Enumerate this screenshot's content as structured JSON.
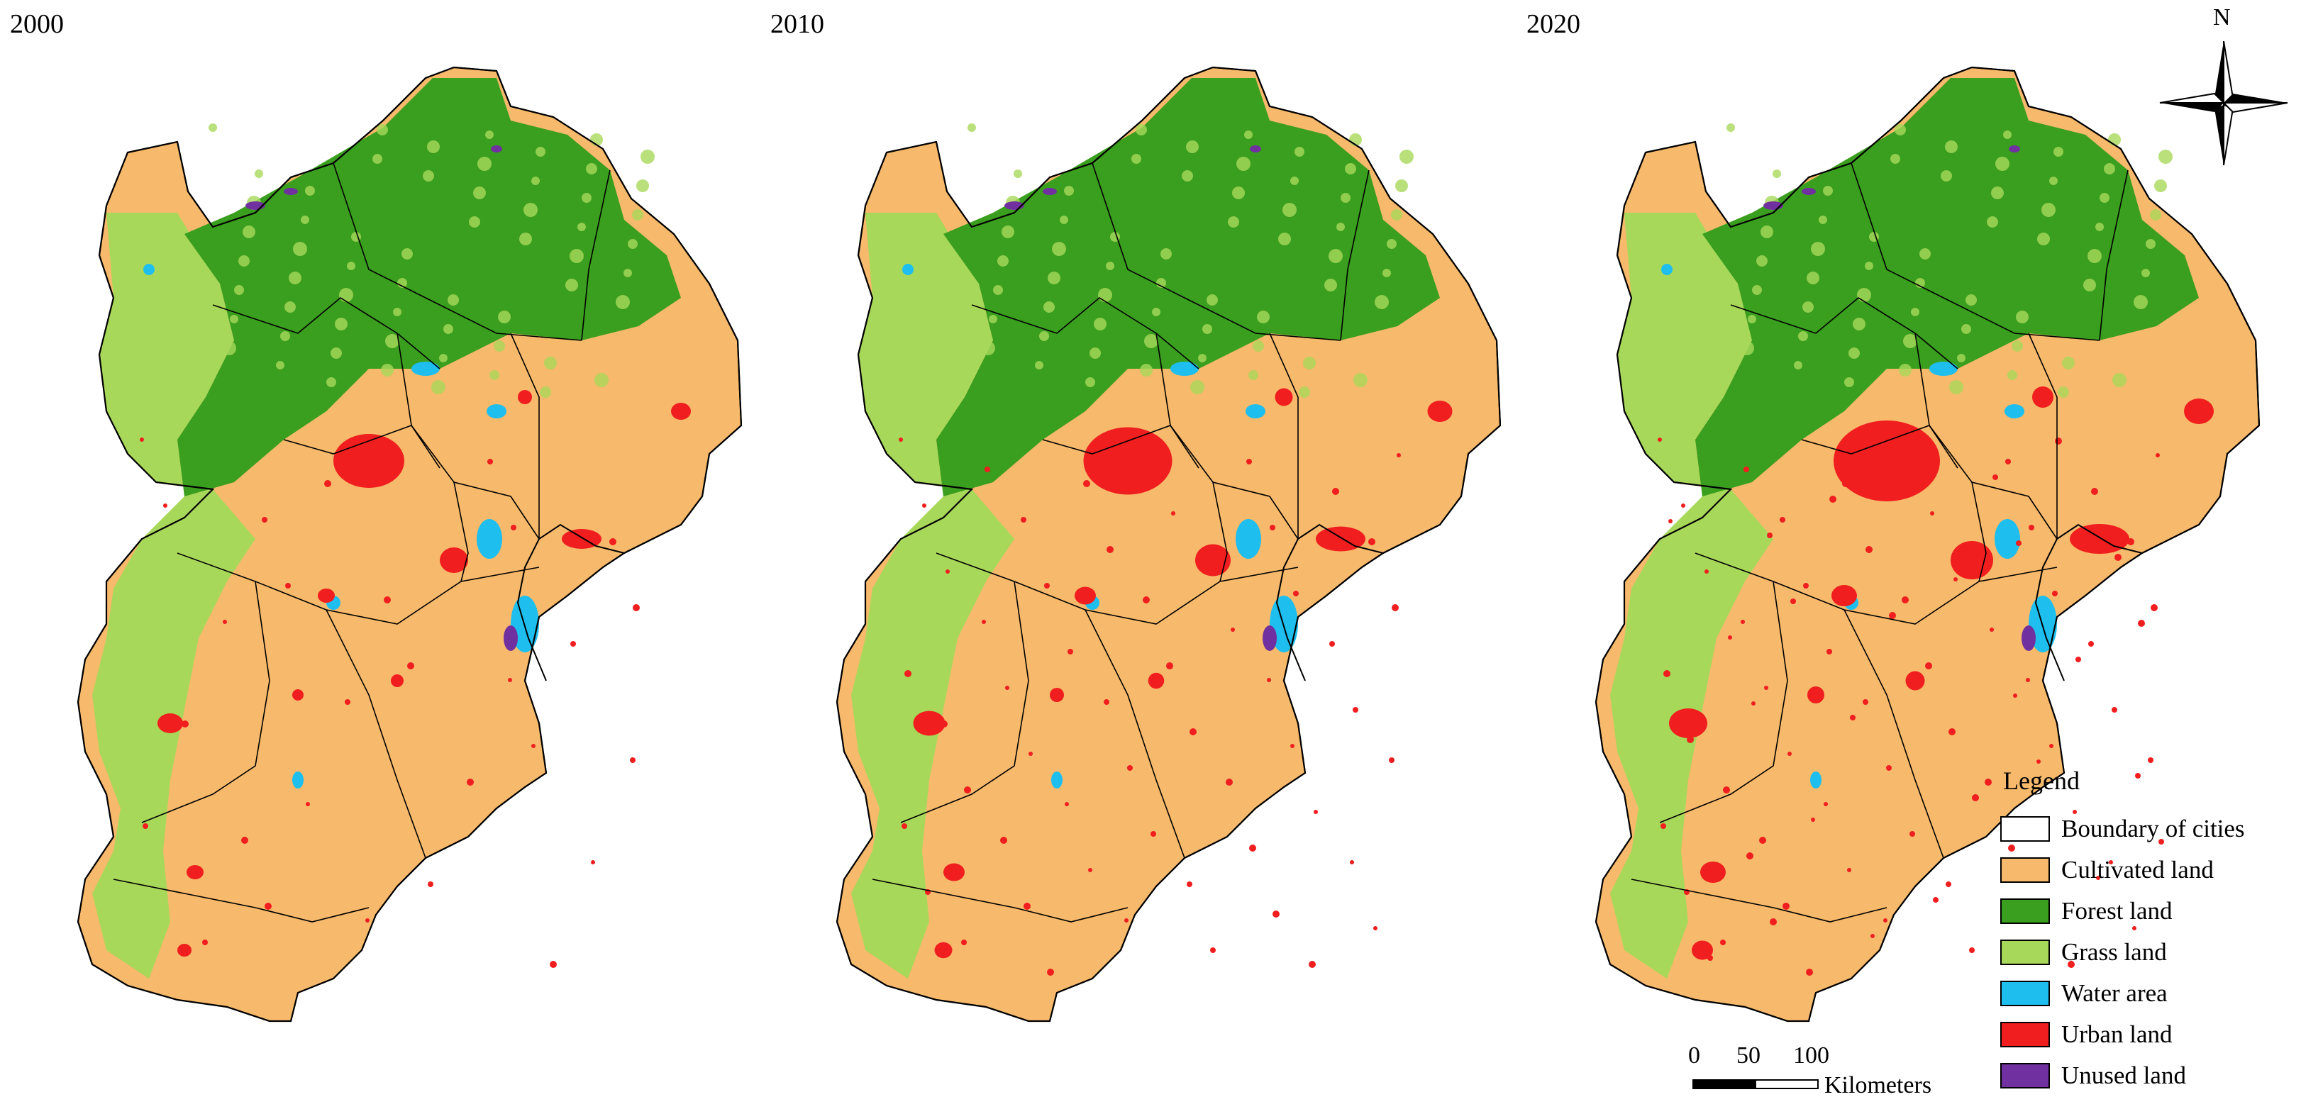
{
  "panels": [
    {
      "year": "2000"
    },
    {
      "year": "2010"
    },
    {
      "year": "2020"
    }
  ],
  "north_arrow": {
    "label": "N"
  },
  "legend": {
    "title": "Legend",
    "items": [
      {
        "label": "Boundary of cities",
        "color": "#ffffff"
      },
      {
        "label": "Cultivated land",
        "color": "#f7b96b"
      },
      {
        "label": "Forest land",
        "color": "#3a9e1e"
      },
      {
        "label": "Grass land",
        "color": "#a8d85a"
      },
      {
        "label": "Water area",
        "color": "#1ebfee"
      },
      {
        "label": "Urban land",
        "color": "#f01e1e"
      },
      {
        "label": "Unused land",
        "color": "#7030a0"
      }
    ]
  },
  "scale_bar": {
    "ticks": [
      "0",
      "50",
      "100"
    ],
    "unit": "Kilometers"
  }
}
